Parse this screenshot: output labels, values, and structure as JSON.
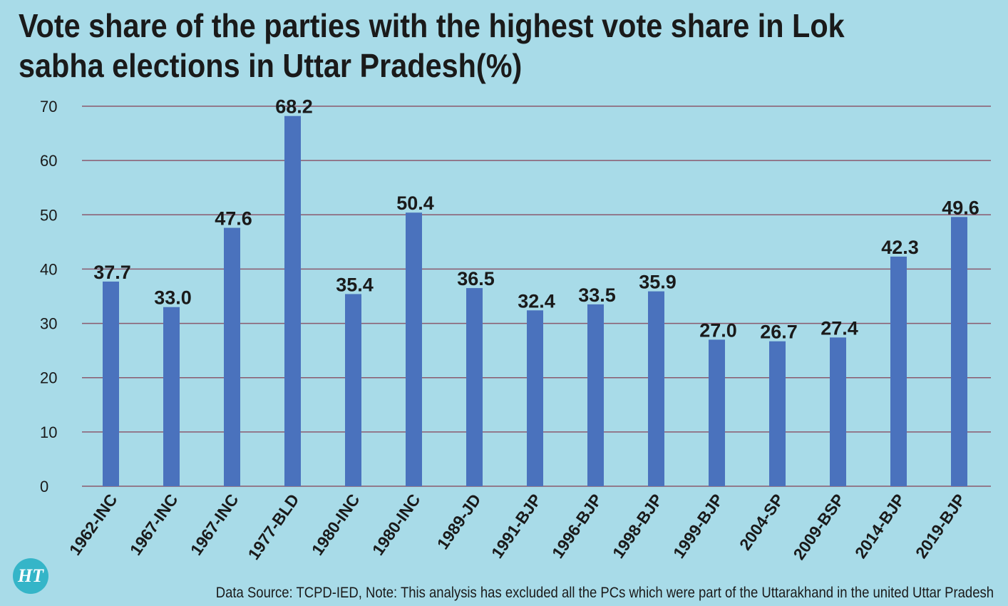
{
  "title": "Vote share of the parties with the highest vote share in Lok sabha elections in Uttar Pradesh(%)",
  "logo_text": "HT",
  "source_note": "Data Source: TCPD-IED, Note: This analysis has excluded all the PCs which were part of the Uttarakhand in the united Uttar Pradesh",
  "colors": {
    "background": "#a8dbe8",
    "bar": "#4a72bd",
    "gridline": "#8a5a6e",
    "text": "#1a1a1a"
  },
  "chart_data": {
    "type": "bar",
    "title": "Vote share of the parties with the highest vote share in Lok sabha elections in Uttar Pradesh(%)",
    "categories": [
      "1962-INC",
      "1967-INC",
      "1967-INC",
      "1977-BLD",
      "1980-INC",
      "1980-INC",
      "1989-JD",
      "1991-BJP",
      "1996-BJP",
      "1998-BJP",
      "1999-BJP",
      "2004-SP",
      "2009-BSP",
      "2014-BJP",
      "2019-BJP"
    ],
    "values": [
      37.7,
      33.0,
      47.6,
      68.2,
      35.4,
      50.4,
      36.5,
      32.4,
      33.5,
      35.9,
      27.0,
      26.7,
      27.4,
      42.3,
      49.6
    ],
    "data_labels": [
      "37.7",
      "33.0",
      "47.6",
      "68.2",
      "35.4",
      "50.4",
      "36.5",
      "32.4",
      "33.5",
      "35.9",
      "27.0",
      "26.7",
      "27.4",
      "42.3",
      "49.6"
    ],
    "yticks": [
      "0",
      "10",
      "20",
      "30",
      "40",
      "50",
      "60",
      "70"
    ],
    "ylim": [
      0,
      70
    ],
    "xlabel": "",
    "ylabel": "",
    "grid": true,
    "legend": "none"
  }
}
